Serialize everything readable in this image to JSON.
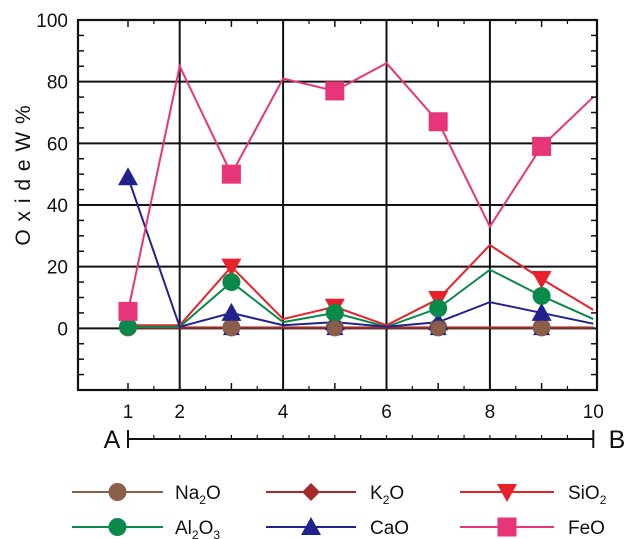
{
  "chart_data": {
    "type": "line",
    "title": "",
    "xlabel": "",
    "ylabel": "O x i d e  W %",
    "xlim": [
      0,
      10
    ],
    "ylim": [
      -20,
      100
    ],
    "x_ticks": [
      "1",
      "2",
      "4",
      "6",
      "8",
      "10"
    ],
    "y_ticks": [
      "100",
      "80",
      "60",
      "40",
      "20",
      "0"
    ],
    "grid": true,
    "profile": {
      "start_label": "A",
      "end_label": "B"
    },
    "x": [
      1,
      2,
      3,
      4,
      5,
      6,
      7,
      8,
      9,
      10
    ],
    "series": [
      {
        "name": "Na",
        "sub": "2",
        "tail": "O",
        "color": "#8B5E4A",
        "marker": "circle",
        "values": [
          0.3,
          0.3,
          0.3,
          0.3,
          0.3,
          0.3,
          0.3,
          0.3,
          0.3,
          0.3
        ],
        "marked": [
          1,
          3,
          5,
          7,
          9
        ]
      },
      {
        "name": "K",
        "sub": "2",
        "tail": "O",
        "color": "#A52A2A",
        "marker": "diamond",
        "values": [
          0.2,
          0.2,
          0.2,
          0.2,
          0.2,
          0.2,
          0.2,
          0.2,
          0.2,
          0.2
        ],
        "marked": []
      },
      {
        "name": "SiO",
        "sub": "2",
        "tail": "",
        "color": "#E8202A",
        "marker": "triangle-down",
        "values": [
          1,
          1,
          20,
          3,
          7,
          1,
          9.5,
          27,
          16,
          6
        ],
        "marked": [
          3,
          5,
          7,
          9
        ]
      },
      {
        "name": "Al",
        "sub": "2",
        "tail": "O3",
        "color": "#0A8A4A",
        "marker": "circle",
        "values": [
          0.5,
          0.5,
          15,
          2,
          5,
          0.5,
          6.5,
          19,
          10.5,
          3
        ],
        "marked": [
          1,
          3,
          5,
          7,
          9
        ]
      },
      {
        "name": "CaO",
        "sub": "",
        "tail": "",
        "color": "#22228F",
        "marker": "triangle-up",
        "values": [
          49,
          0.5,
          5,
          1,
          2,
          0.5,
          2,
          8.5,
          5,
          1.5
        ],
        "marked": [
          1,
          3,
          5,
          7,
          9
        ]
      },
      {
        "name": "FeO",
        "sub": "",
        "tail": "",
        "color": "#E8357A",
        "marker": "square",
        "values": [
          5.5,
          85,
          50,
          81,
          77,
          86,
          67,
          33,
          59,
          75
        ],
        "marked": [
          1,
          3,
          5,
          7,
          9
        ]
      }
    ],
    "zero_markers": [
      {
        "series": "CaO",
        "x": [
          3,
          5,
          7,
          9
        ]
      },
      {
        "series": "Na",
        "x": [
          3,
          5,
          7,
          9
        ]
      }
    ],
    "legend_order": [
      "Na",
      "K",
      "SiO",
      "Al",
      "CaO",
      "FeO"
    ],
    "legend_position": "bottom"
  }
}
